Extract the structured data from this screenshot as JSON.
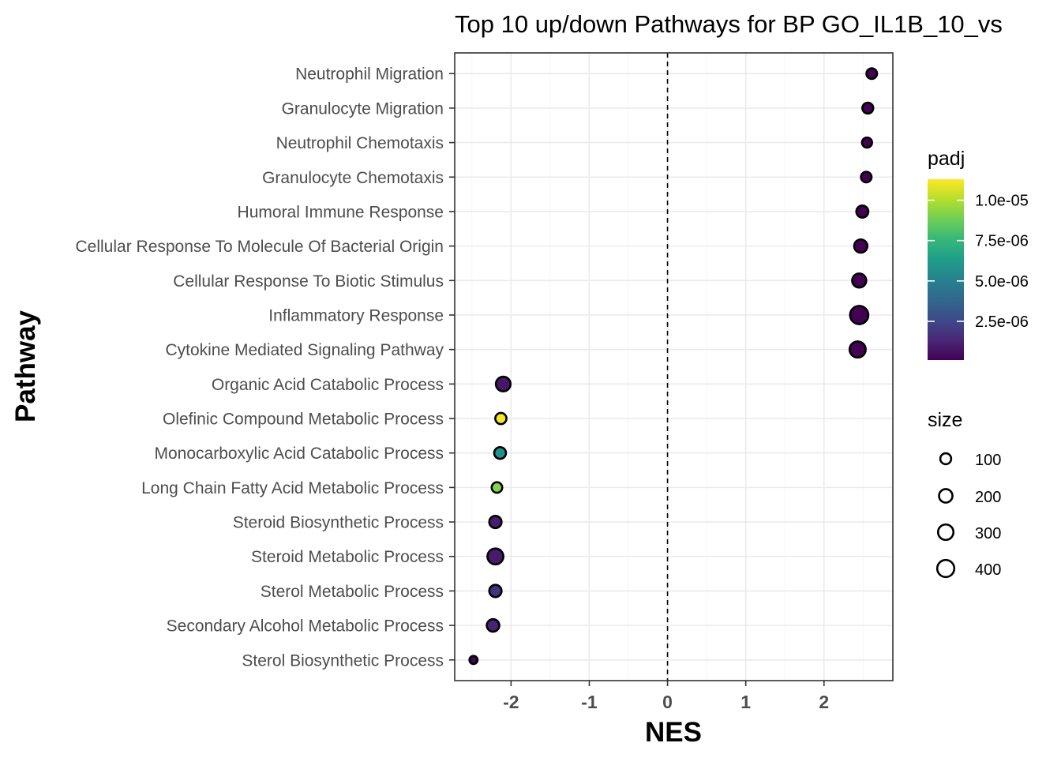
{
  "chart_data": {
    "type": "scatter",
    "title": "Top 10 up/down Pathways for BP GO_IL1B_10_vs",
    "xlabel": "NES",
    "ylabel": "Pathway",
    "xlim": [
      -2.72,
      2.88
    ],
    "x_ticks": [
      -2,
      -1,
      0,
      1,
      2
    ],
    "x_tick_labels": [
      "-2",
      "-1",
      "0",
      "1",
      "2"
    ],
    "reference_line": {
      "x": 0,
      "style": "dashed"
    },
    "grid": true,
    "categories": [
      "Neutrophil Migration",
      "Granulocyte Migration",
      "Neutrophil Chemotaxis",
      "Granulocyte Chemotaxis",
      "Humoral Immune Response",
      "Cellular Response To Molecule Of Bacterial Origin",
      "Cellular Response To Biotic Stimulus",
      "Inflammatory Response",
      "Cytokine Mediated Signaling Pathway",
      "Organic Acid Catabolic Process",
      "Olefinic Compound Metabolic Process",
      "Monocarboxylic Acid Catabolic Process",
      "Long Chain Fatty Acid Metabolic Process",
      "Steroid Biosynthetic Process",
      "Steroid Metabolic Process",
      "Sterol Metabolic Process",
      "Secondary Alcohol Metabolic Process",
      "Sterol Biosynthetic Process"
    ],
    "points": [
      {
        "pathway": "Neutrophil Migration",
        "nes": 2.61,
        "size": 90,
        "padj": 1e-07
      },
      {
        "pathway": "Granulocyte Migration",
        "nes": 2.56,
        "size": 100,
        "padj": 1e-07
      },
      {
        "pathway": "Neutrophil Chemotaxis",
        "nes": 2.55,
        "size": 75,
        "padj": 1e-07
      },
      {
        "pathway": "Granulocyte Chemotaxis",
        "nes": 2.54,
        "size": 90,
        "padj": 1e-07
      },
      {
        "pathway": "Humoral Immune Response",
        "nes": 2.49,
        "size": 140,
        "padj": 1e-07
      },
      {
        "pathway": "Cellular Response To Molecule Of Bacterial Origin",
        "nes": 2.47,
        "size": 190,
        "padj": 1e-07
      },
      {
        "pathway": "Cellular Response To Biotic Stimulus",
        "nes": 2.45,
        "size": 230,
        "padj": 1e-07
      },
      {
        "pathway": "Inflammatory Response",
        "nes": 2.45,
        "size": 480,
        "padj": 1e-07
      },
      {
        "pathway": "Cytokine Mediated Signaling Pathway",
        "nes": 2.43,
        "size": 340,
        "padj": 1e-07
      },
      {
        "pathway": "Organic Acid Catabolic Process",
        "nes": -2.1,
        "size": 260,
        "padj": 8e-07
      },
      {
        "pathway": "Olefinic Compound Metabolic Process",
        "nes": -2.13,
        "size": 110,
        "padj": 1.12e-05
      },
      {
        "pathway": "Monocarboxylic Acid Catabolic Process",
        "nes": -2.14,
        "size": 130,
        "padj": 5.7e-06
      },
      {
        "pathway": "Long Chain Fatty Acid Metabolic Process",
        "nes": -2.18,
        "size": 90,
        "padj": 9.2e-06
      },
      {
        "pathway": "Steroid Biosynthetic Process",
        "nes": -2.2,
        "size": 150,
        "padj": 1e-06
      },
      {
        "pathway": "Steroid Metabolic Process",
        "nes": -2.2,
        "size": 330,
        "padj": 9e-07
      },
      {
        "pathway": "Sterol Metabolic Process",
        "nes": -2.2,
        "size": 150,
        "padj": 1.8e-06
      },
      {
        "pathway": "Secondary Alcohol Metabolic Process",
        "nes": -2.23,
        "size": 160,
        "padj": 1.2e-06
      },
      {
        "pathway": "Sterol Biosynthetic Process",
        "nes": -2.48,
        "size": 30,
        "padj": 2e-07
      }
    ],
    "legend_color": {
      "title": "padj",
      "placement": "right",
      "range": [
        1e-07,
        1.13e-05
      ],
      "breaks": [
        2.5e-06,
        5e-06,
        7.5e-06,
        1e-05
      ],
      "labels": [
        "2.5e-06",
        "5.0e-06",
        "7.5e-06",
        "1.0e-05"
      ],
      "colors": [
        "#440154",
        "#482878",
        "#3e4a89",
        "#31688e",
        "#26828e",
        "#1f9e89",
        "#35b779",
        "#6ece58",
        "#b5de2b",
        "#fde725"
      ]
    },
    "legend_size": {
      "title": "size",
      "placement": "right",
      "breaks": [
        100,
        200,
        300,
        400
      ],
      "labels": [
        "100",
        "200",
        "300",
        "400"
      ]
    }
  }
}
